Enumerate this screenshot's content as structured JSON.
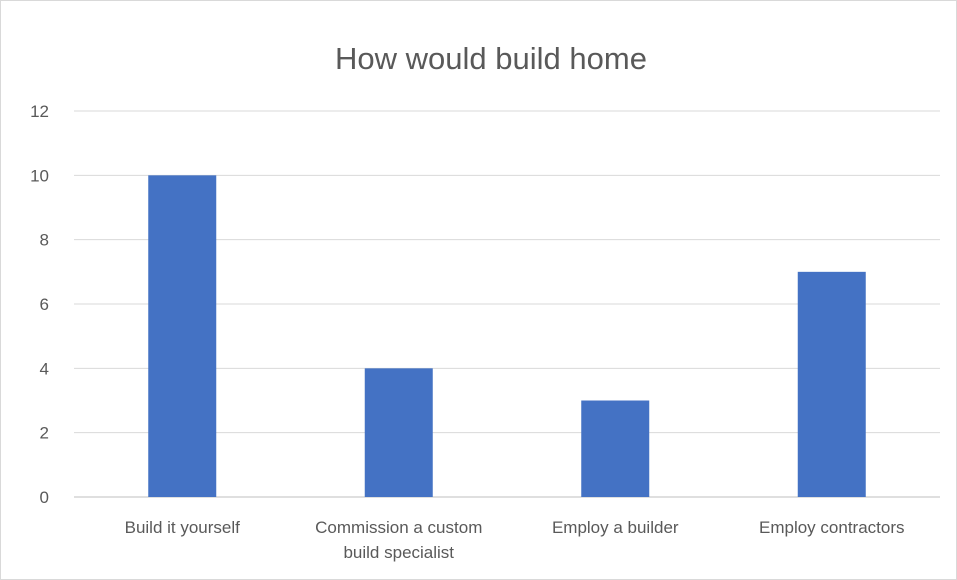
{
  "chart_data": {
    "type": "bar",
    "title": "How would build home",
    "categories": [
      [
        "Build it yourself"
      ],
      [
        "Commission a custom",
        "build specialist"
      ],
      [
        "Employ a builder"
      ],
      [
        "Employ contractors"
      ]
    ],
    "values": [
      10,
      4,
      3,
      7
    ],
    "ylim": [
      0,
      12
    ],
    "yticks": [
      0,
      2,
      4,
      6,
      8,
      10,
      12
    ],
    "grid": true,
    "legend": "none",
    "bar_color": "#4472C4"
  }
}
